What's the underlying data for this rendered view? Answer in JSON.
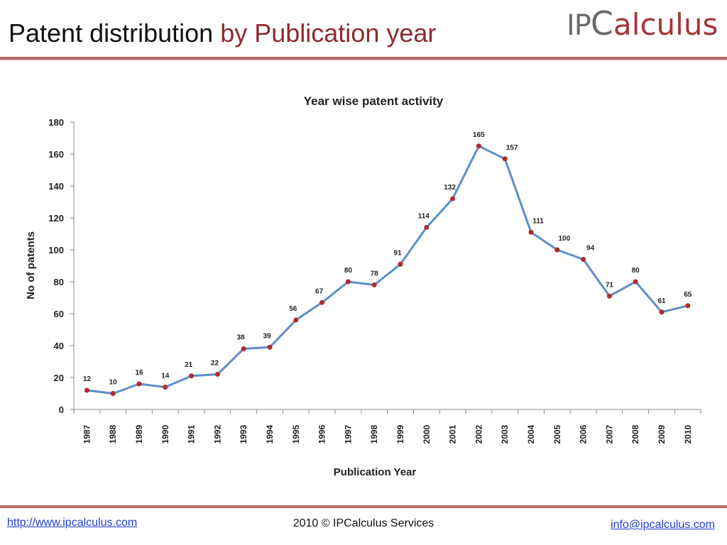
{
  "slide": {
    "title_main": "Patent distribution",
    "title_accent": "by Publication year"
  },
  "logo": {
    "ip": "IP",
    "c": "C",
    "rest": "alculus"
  },
  "colors": {
    "accent": "#8e2a2e",
    "rule": "#b36a6a",
    "line": "#5b8fc9",
    "marker": "#b22a2a",
    "link": "#1f3bd6"
  },
  "footer": {
    "website": "http://www.ipcalculus.com",
    "copyright": "2010 © IPCalculus Services",
    "email": "info@ipcalculus.com"
  },
  "chart_data": {
    "type": "line",
    "title": "Year wise patent activity",
    "xlabel": "Publication Year",
    "ylabel": "No of patents",
    "ylim": [
      0,
      180
    ],
    "yticks": [
      0,
      20,
      40,
      60,
      80,
      100,
      120,
      140,
      160,
      180
    ],
    "grid": false,
    "categories": [
      "1987",
      "1988",
      "1989",
      "1990",
      "1991",
      "1992",
      "1993",
      "1994",
      "1995",
      "1996",
      "1997",
      "1998",
      "1999",
      "2000",
      "2001",
      "2002",
      "2003",
      "2004",
      "2005",
      "2006",
      "2007",
      "2008",
      "2009",
      "2010"
    ],
    "values": [
      12,
      10,
      16,
      14,
      21,
      22,
      38,
      39,
      56,
      67,
      80,
      78,
      91,
      114,
      132,
      165,
      157,
      111,
      100,
      94,
      71,
      80,
      61,
      65
    ]
  }
}
